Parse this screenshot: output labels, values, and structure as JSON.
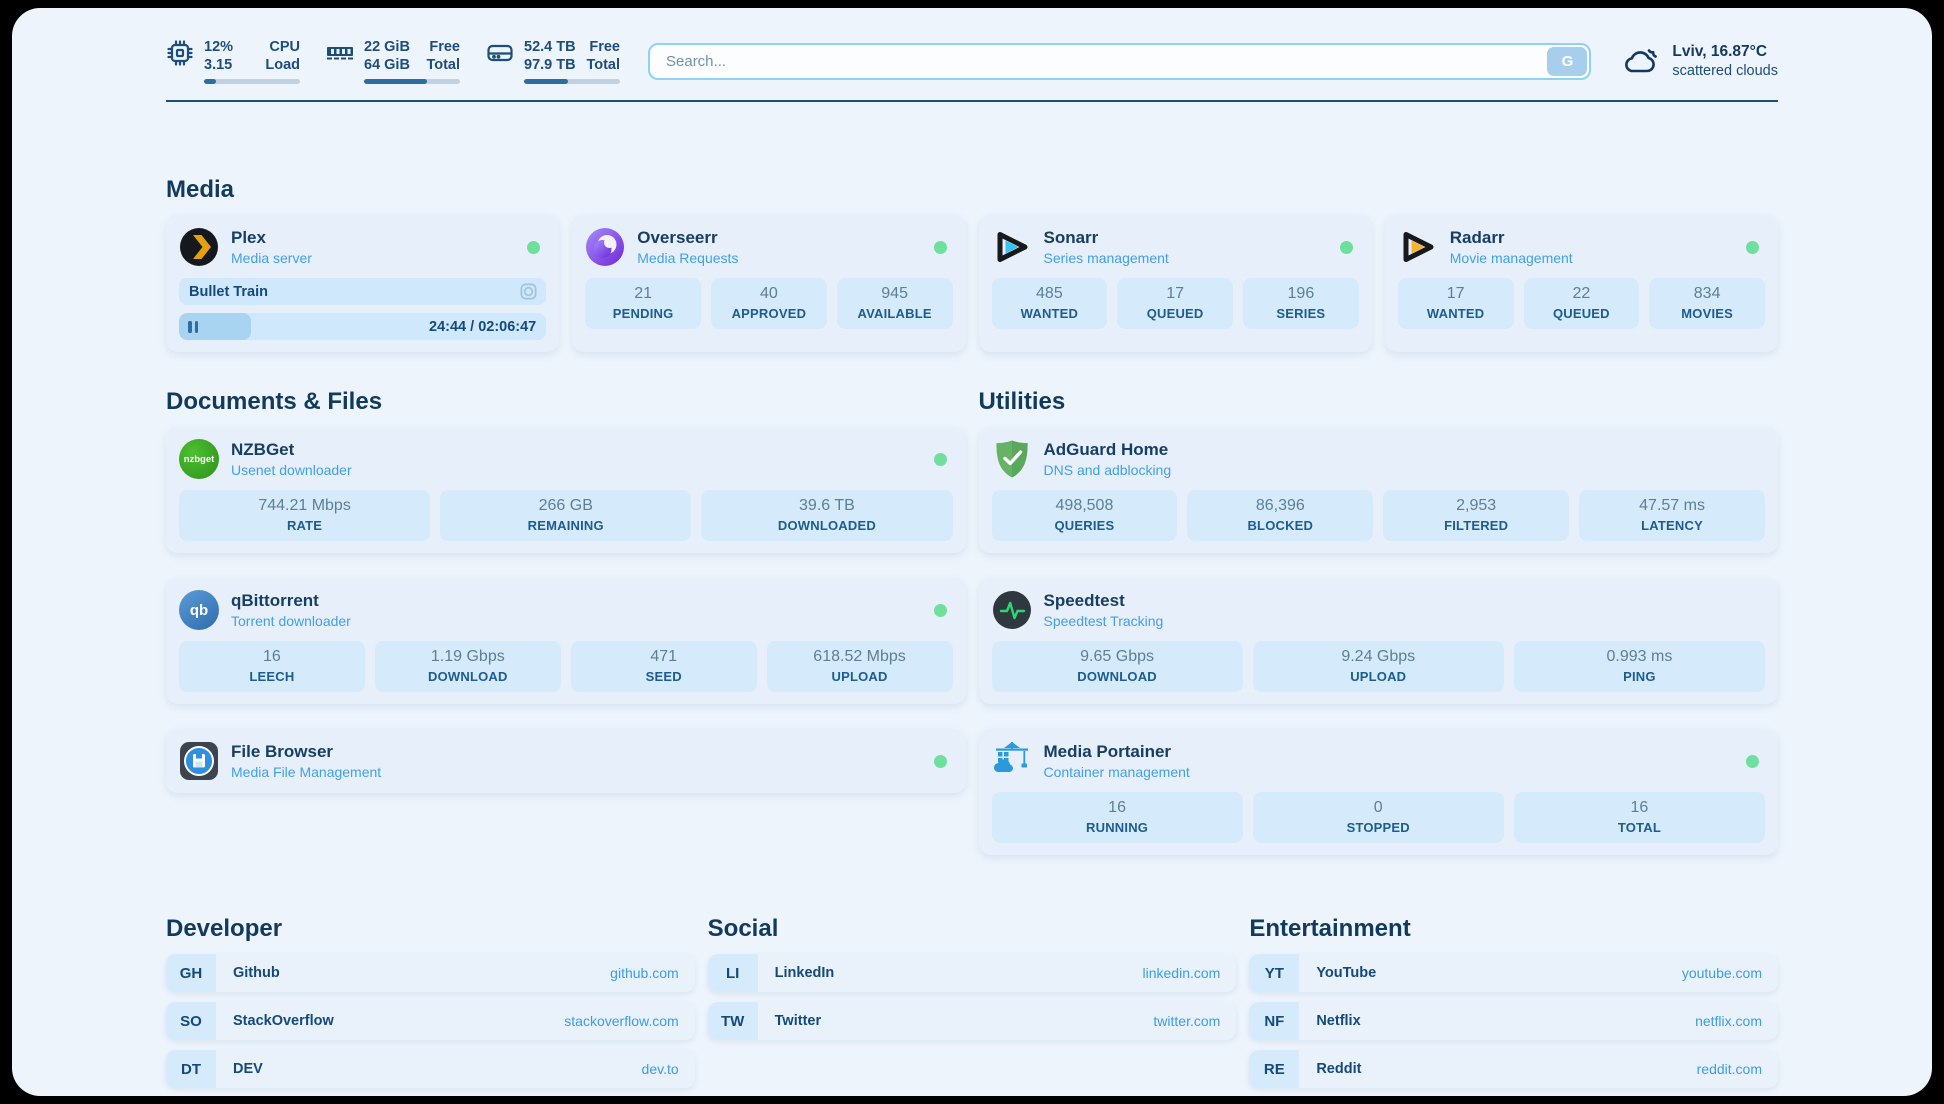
{
  "colors": {
    "page_background": "#edf4fc",
    "accent": "#2e6e9e",
    "online_status_green": "#6fdf9d",
    "link_blue": "#3d9ce5",
    "heading_navy": "#113a5c"
  },
  "topbar": {
    "cpu": {
      "icon": "cpu-icon",
      "value_row1": "12%",
      "label_row1": "CPU",
      "value_row2": "3.15",
      "label_row2": "Load",
      "progress_pct": 12
    },
    "memory": {
      "icon": "memory-icon",
      "value_row1": "22 GiB",
      "label_row1": "Free",
      "value_row2": "64 GiB",
      "label_row2": "Total",
      "progress_pct": 66
    },
    "disk": {
      "icon": "disk-icon",
      "value_row1": "52.4 TB",
      "label_row1": "Free",
      "value_row2": "97.9 TB",
      "label_row2": "Total",
      "progress_pct": 46
    },
    "search": {
      "placeholder": "Search...",
      "button_label": "G"
    },
    "weather": {
      "icon": "cloud-icon",
      "location_temperature": "Lviv, 16.87°C",
      "condition": "scattered clouds"
    }
  },
  "sections": {
    "media": {
      "title": "Media",
      "plex": {
        "icon": "plex-logo",
        "name": "Plex",
        "subtitle": "Media server",
        "online": true,
        "now_playing": "Bullet Train",
        "elapsed_total": "24:44 / 02:06:47",
        "progress_pct": 19.6
      },
      "overseerr": {
        "icon": "overseerr-logo",
        "name": "Overseerr",
        "subtitle": "Media Requests",
        "online": true,
        "stats": [
          {
            "value": "21",
            "label": "PENDING"
          },
          {
            "value": "40",
            "label": "APPROVED"
          },
          {
            "value": "945",
            "label": "AVAILABLE"
          }
        ]
      },
      "sonarr": {
        "icon": "sonarr-logo",
        "name": "Sonarr",
        "subtitle": "Series management",
        "online": true,
        "stats": [
          {
            "value": "485",
            "label": "WANTED"
          },
          {
            "value": "17",
            "label": "QUEUED"
          },
          {
            "value": "196",
            "label": "SERIES"
          }
        ]
      },
      "radarr": {
        "icon": "radarr-logo",
        "name": "Radarr",
        "subtitle": "Movie management",
        "online": true,
        "stats": [
          {
            "value": "17",
            "label": "WANTED"
          },
          {
            "value": "22",
            "label": "QUEUED"
          },
          {
            "value": "834",
            "label": "MOVIES"
          }
        ]
      }
    },
    "documents": {
      "title": "Documents & Files",
      "nzbget": {
        "icon": "nzbget-logo",
        "name": "NZBGet",
        "subtitle": "Usenet downloader",
        "online": true,
        "stats": [
          {
            "value": "744.21 Mbps",
            "label": "RATE"
          },
          {
            "value": "266 GB",
            "label": "REMAINING"
          },
          {
            "value": "39.6 TB",
            "label": "DOWNLOADED"
          }
        ]
      },
      "qbittorrent": {
        "icon": "qbittorrent-logo",
        "name": "qBittorrent",
        "subtitle": "Torrent downloader",
        "online": true,
        "stats": [
          {
            "value": "16",
            "label": "LEECH"
          },
          {
            "value": "1.19 Gbps",
            "label": "DOWNLOAD"
          },
          {
            "value": "471",
            "label": "SEED"
          },
          {
            "value": "618.52 Mbps",
            "label": "UPLOAD"
          }
        ]
      },
      "filebrowser": {
        "icon": "filebrowser-logo",
        "name": "File Browser",
        "subtitle": "Media File Management",
        "online": true
      }
    },
    "utilities": {
      "title": "Utilities",
      "adguard": {
        "icon": "adguard-logo",
        "name": "AdGuard Home",
        "subtitle": "DNS and adblocking",
        "online": false,
        "stats": [
          {
            "value": "498,508",
            "label": "QUERIES"
          },
          {
            "value": "86,396",
            "label": "BLOCKED"
          },
          {
            "value": "2,953",
            "label": "FILTERED"
          },
          {
            "value": "47.57 ms",
            "label": "LATENCY"
          }
        ]
      },
      "speedtest": {
        "icon": "speedtest-logo",
        "name": "Speedtest",
        "subtitle": "Speedtest Tracking",
        "online": false,
        "stats": [
          {
            "value": "9.65 Gbps",
            "label": "DOWNLOAD"
          },
          {
            "value": "9.24 Gbps",
            "label": "UPLOAD"
          },
          {
            "value": "0.993 ms",
            "label": "PING"
          }
        ]
      },
      "portainer": {
        "icon": "portainer-logo",
        "name": "Media Portainer",
        "subtitle": "Container management",
        "online": true,
        "stats": [
          {
            "value": "16",
            "label": "RUNNING"
          },
          {
            "value": "0",
            "label": "STOPPED"
          },
          {
            "value": "16",
            "label": "TOTAL"
          }
        ]
      }
    },
    "bookmarks": {
      "developer": {
        "title": "Developer",
        "items": [
          {
            "abbr": "GH",
            "name": "Github",
            "url": "github.com"
          },
          {
            "abbr": "SO",
            "name": "StackOverflow",
            "url": "stackoverflow.com"
          },
          {
            "abbr": "DT",
            "name": "DEV",
            "url": "dev.to"
          }
        ]
      },
      "social": {
        "title": "Social",
        "items": [
          {
            "abbr": "LI",
            "name": "LinkedIn",
            "url": "linkedin.com"
          },
          {
            "abbr": "TW",
            "name": "Twitter",
            "url": "twitter.com"
          }
        ]
      },
      "entertainment": {
        "title": "Entertainment",
        "items": [
          {
            "abbr": "YT",
            "name": "YouTube",
            "url": "youtube.com"
          },
          {
            "abbr": "NF",
            "name": "Netflix",
            "url": "netflix.com"
          },
          {
            "abbr": "RE",
            "name": "Reddit",
            "url": "reddit.com"
          }
        ]
      }
    }
  }
}
